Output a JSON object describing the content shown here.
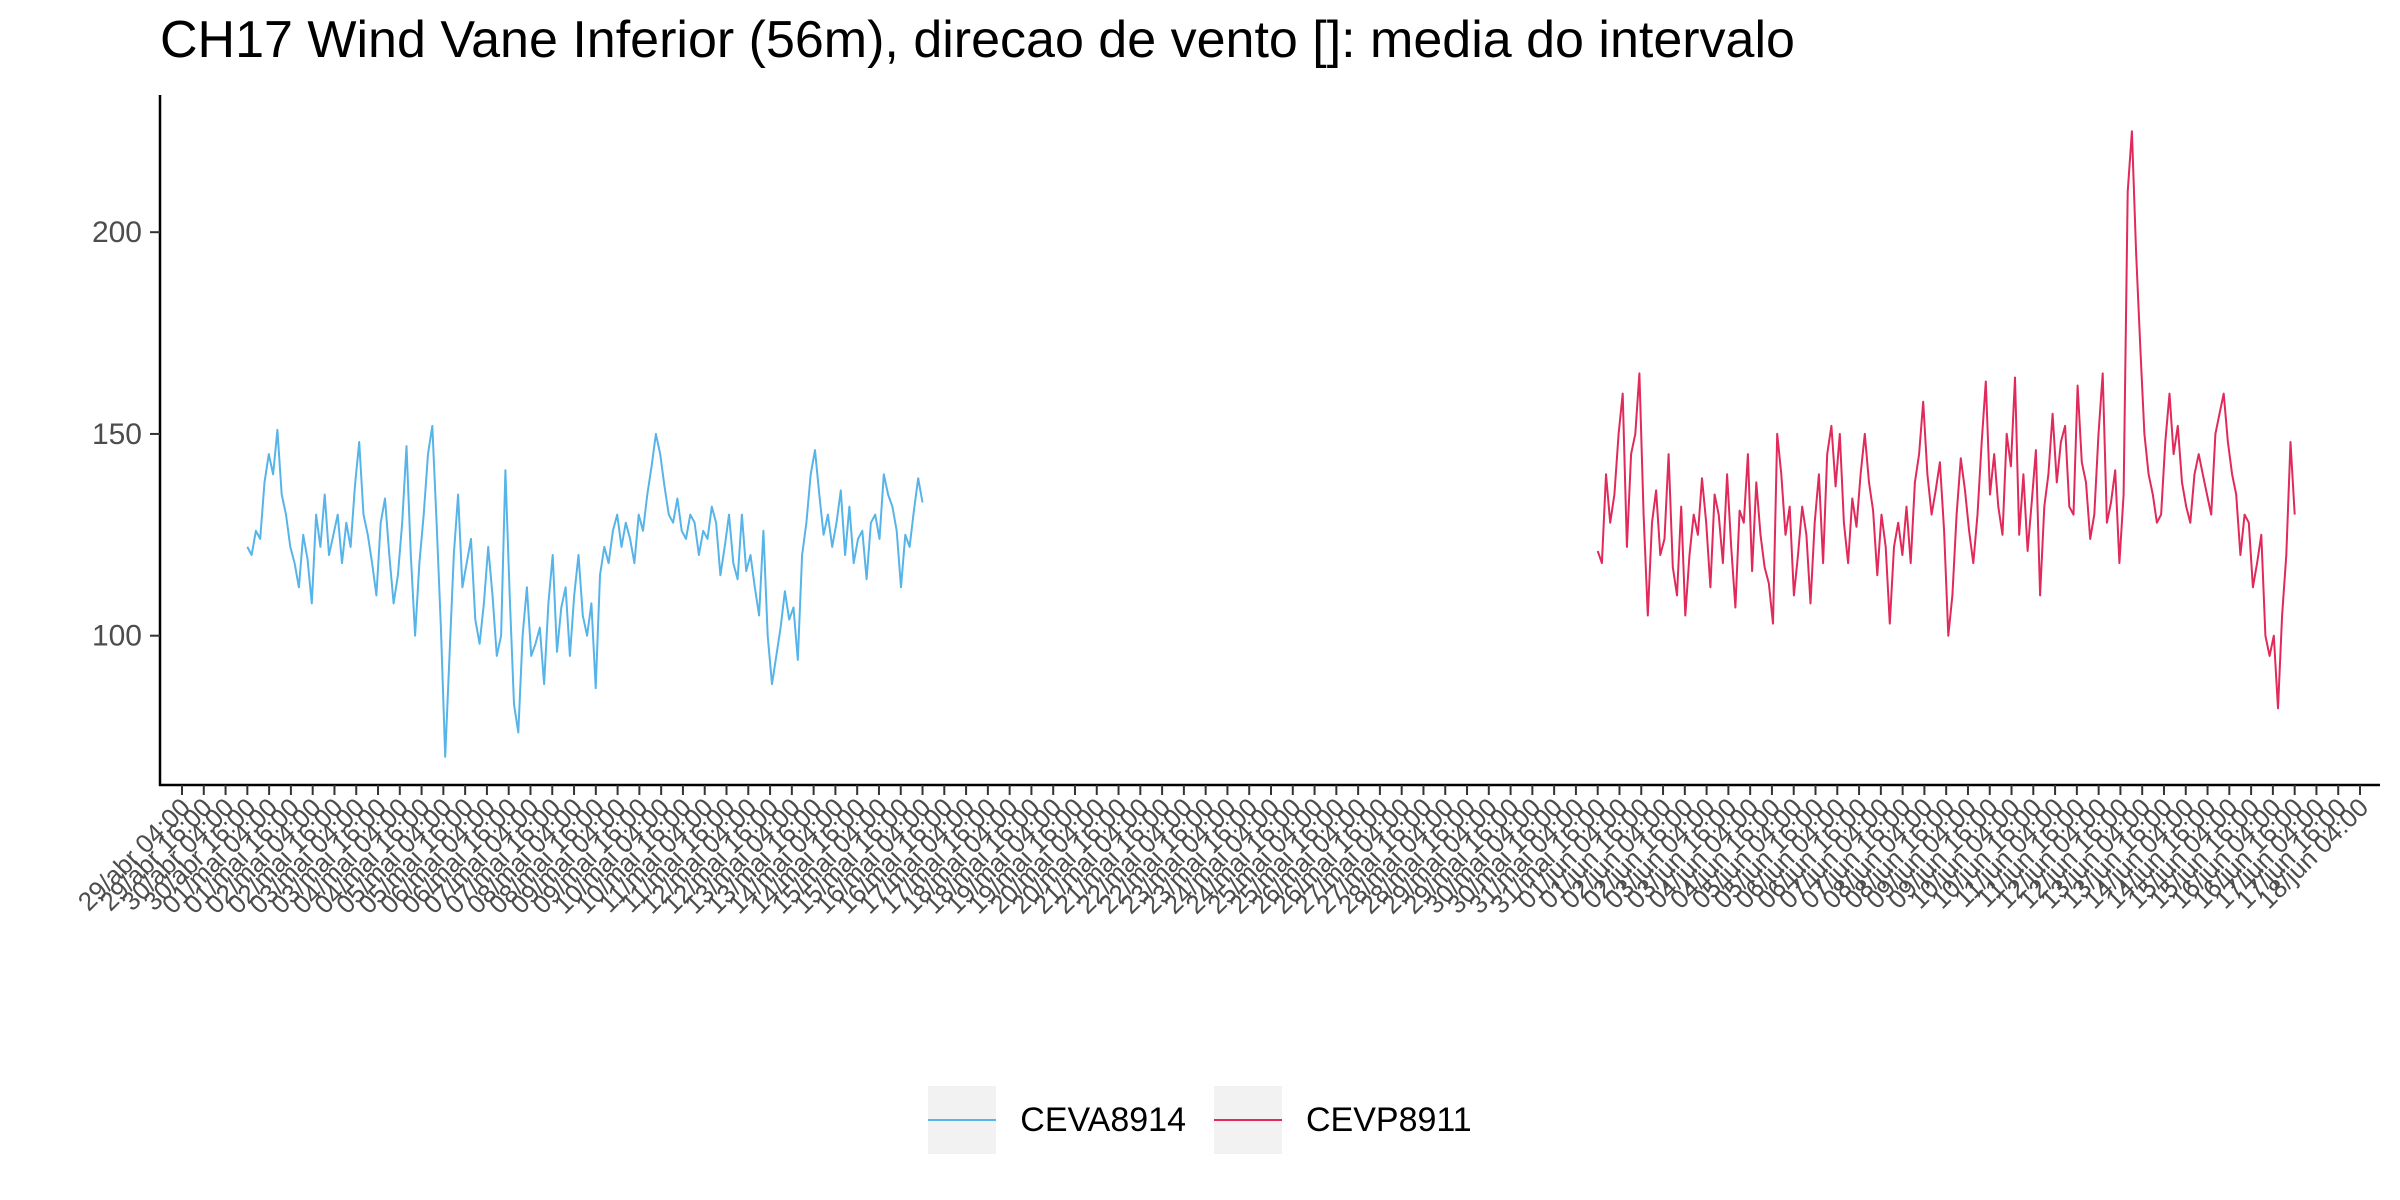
{
  "chart_data": {
    "type": "line",
    "title": "CH17 Wind Vane Inferior (56m), direcao de vento []: media do intervalo",
    "xlabel": "",
    "ylabel": "",
    "x_range": [
      "29/abr 04:00",
      "18/jun 04:00"
    ],
    "ylim": [
      63,
      234
    ],
    "yticks": [
      100,
      150,
      200
    ],
    "grid": false,
    "legend_position": "bottom",
    "xtick_labels": [
      "29/abr 04:00",
      "29/abr 16:00",
      "30/abr 04:00",
      "30/abr 16:00",
      "01/mai 04:00",
      "01/mai 16:00",
      "02/mai 04:00",
      "02/mai 16:00",
      "03/mai 04:00",
      "03/mai 16:00",
      "04/mai 04:00",
      "04/mai 16:00",
      "05/mai 04:00",
      "05/mai 16:00",
      "06/mai 04:00",
      "06/mai 16:00",
      "07/mai 04:00",
      "07/mai 16:00",
      "08/mai 04:00",
      "08/mai 16:00",
      "09/mai 04:00",
      "09/mai 16:00",
      "10/mai 04:00",
      "10/mai 16:00",
      "11/mai 04:00",
      "11/mai 16:00",
      "12/mai 04:00",
      "12/mai 16:00",
      "13/mai 04:00",
      "13/mai 16:00",
      "14/mai 04:00",
      "14/mai 16:00",
      "15/mai 04:00",
      "15/mai 16:00",
      "16/mai 04:00",
      "16/mai 16:00",
      "17/mai 04:00",
      "17/mai 16:00",
      "18/mai 04:00",
      "18/mai 16:00",
      "19/mai 04:00",
      "19/mai 16:00",
      "20/mai 04:00",
      "20/mai 16:00",
      "21/mai 04:00",
      "21/mai 16:00",
      "22/mai 04:00",
      "22/mai 16:00",
      "23/mai 04:00",
      "23/mai 16:00",
      "24/mai 04:00",
      "24/mai 16:00",
      "25/mai 04:00",
      "25/mai 16:00",
      "26/mai 04:00",
      "26/mai 16:00",
      "27/mai 04:00",
      "27/mai 16:00",
      "28/mai 04:00",
      "28/mai 16:00",
      "29/mai 04:00",
      "29/mai 16:00",
      "30/mai 04:00",
      "30/mai 16:00",
      "31/mai 04:00",
      "31/mai 16:00",
      "01/jun 04:00",
      "01/jun 16:00",
      "02/jun 04:00",
      "02/jun 16:00",
      "03/jun 04:00",
      "03/jun 16:00",
      "04/jun 04:00",
      "04/jun 16:00",
      "05/jun 04:00",
      "05/jun 16:00",
      "06/jun 04:00",
      "06/jun 16:00",
      "07/jun 04:00",
      "07/jun 16:00",
      "08/jun 04:00",
      "08/jun 16:00",
      "09/jun 04:00",
      "09/jun 16:00",
      "10/jun 04:00",
      "10/jun 16:00",
      "11/jun 04:00",
      "11/jun 16:00",
      "12/jun 04:00",
      "12/jun 16:00",
      "13/jun 04:00",
      "13/jun 16:00",
      "14/jun 04:00",
      "14/jun 16:00",
      "15/jun 04:00",
      "15/jun 16:00",
      "16/jun 04:00",
      "16/jun 16:00",
      "17/jun 04:00",
      "17/jun 16:00",
      "18/jun 04:00"
    ],
    "series": [
      {
        "name": "CEVA8914",
        "color": "#56B4E9",
        "x_start": "30/abr 16:00",
        "x_end": "16/mai 04:00",
        "values": [
          122,
          120,
          126,
          124,
          138,
          145,
          140,
          151,
          135,
          130,
          122,
          118,
          112,
          125,
          119,
          108,
          130,
          122,
          135,
          120,
          125,
          130,
          118,
          128,
          122,
          137,
          148,
          130,
          125,
          118,
          110,
          128,
          134,
          120,
          108,
          115,
          128,
          147,
          120,
          100,
          118,
          130,
          145,
          152,
          128,
          102,
          70,
          95,
          120,
          135,
          112,
          118,
          124,
          104,
          98,
          108,
          122,
          110,
          95,
          100,
          141,
          110,
          83,
          76,
          100,
          112,
          95,
          98,
          102,
          88,
          108,
          120,
          96,
          107,
          112,
          95,
          110,
          120,
          105,
          100,
          108,
          87,
          115,
          122,
          118,
          126,
          130,
          122,
          128,
          124,
          118,
          130,
          126,
          135,
          142,
          150,
          145,
          137,
          130,
          128,
          134,
          126,
          124,
          130,
          128,
          120,
          126,
          124,
          132,
          128,
          115,
          122,
          130,
          118,
          114,
          130,
          116,
          120,
          112,
          105,
          126,
          100,
          88,
          95,
          102,
          111,
          104,
          107,
          94,
          120,
          128,
          140,
          146,
          135,
          125,
          130,
          122,
          128,
          136,
          120,
          132,
          118,
          124,
          126,
          114,
          128,
          130,
          124,
          140,
          135,
          132,
          126,
          112,
          125,
          122,
          131,
          139,
          133
        ]
      },
      {
        "name": "CEVP8911",
        "color": "#E1295A",
        "x_start": "31/mai 16:00",
        "x_end": "16/jun 16:00",
        "values": [
          121,
          118,
          140,
          128,
          135,
          150,
          160,
          122,
          145,
          150,
          165,
          130,
          105,
          128,
          136,
          120,
          124,
          145,
          117,
          110,
          132,
          105,
          120,
          130,
          125,
          139,
          128,
          112,
          135,
          130,
          118,
          140,
          122,
          107,
          131,
          128,
          145,
          116,
          138,
          125,
          117,
          113,
          103,
          150,
          140,
          125,
          132,
          110,
          120,
          132,
          125,
          108,
          128,
          140,
          118,
          145,
          152,
          137,
          150,
          128,
          118,
          134,
          127,
          140,
          150,
          138,
          131,
          115,
          130,
          122,
          103,
          122,
          128,
          120,
          132,
          118,
          138,
          145,
          158,
          140,
          130,
          136,
          143,
          126,
          100,
          110,
          130,
          144,
          136,
          126,
          118,
          130,
          148,
          163,
          135,
          145,
          132,
          125,
          150,
          142,
          164,
          125,
          140,
          121,
          133,
          146,
          110,
          132,
          140,
          155,
          138,
          148,
          152,
          132,
          130,
          162,
          143,
          138,
          124,
          130,
          150,
          165,
          128,
          133,
          141,
          118,
          135,
          210,
          225,
          195,
          172,
          150,
          140,
          135,
          128,
          130,
          148,
          160,
          145,
          152,
          138,
          132,
          128,
          140,
          145,
          140,
          135,
          130,
          150,
          155,
          160,
          148,
          140,
          135,
          120,
          130,
          128,
          112,
          118,
          125,
          100,
          95,
          100,
          82,
          105,
          120,
          148,
          130
        ]
      }
    ]
  }
}
